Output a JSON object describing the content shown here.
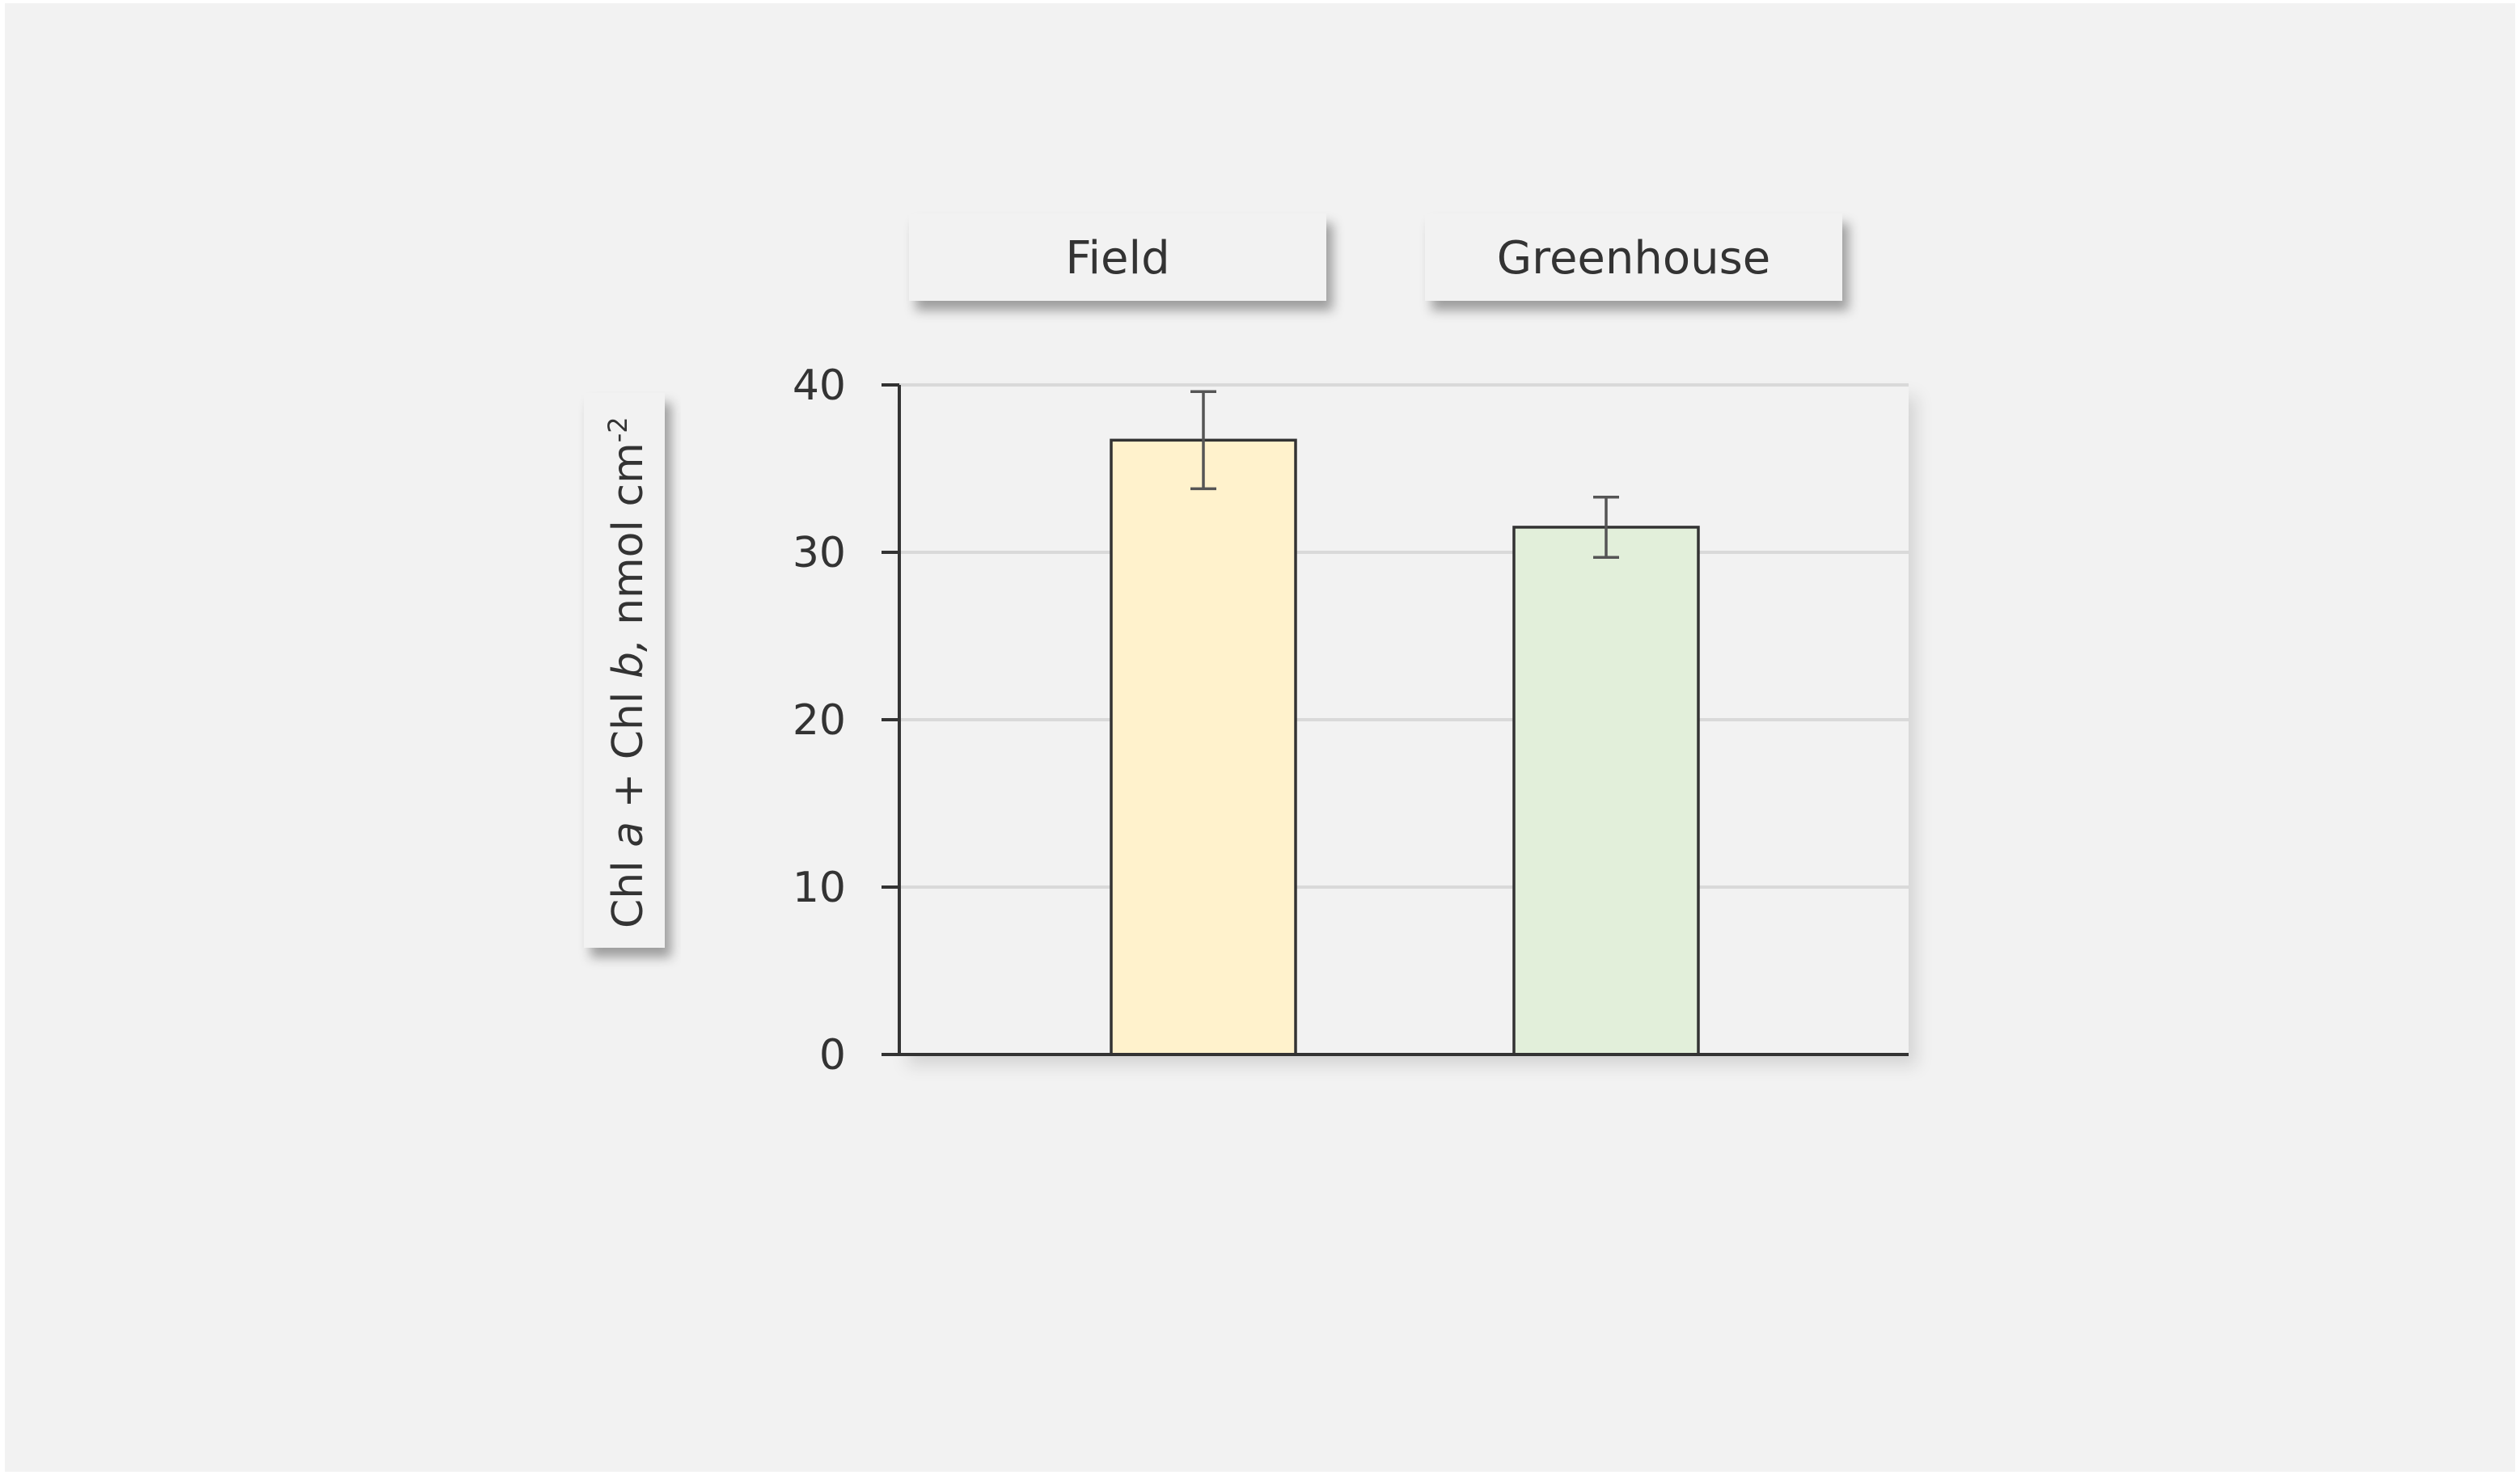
{
  "chart_data": {
    "type": "bar",
    "categories": [
      "Field",
      "Greenhouse"
    ],
    "values": [
      36.7,
      31.5
    ],
    "error": [
      2.9,
      1.8
    ],
    "ylabel": {
      "parts": [
        {
          "text": "Chl ",
          "style": "normal"
        },
        {
          "text": "a",
          "style": "italic"
        },
        {
          "text": " + Chl ",
          "style": "normal"
        },
        {
          "text": "b,",
          "style": "italic"
        },
        {
          "text": " nmol cm",
          "style": "normal"
        },
        {
          "text": "-2",
          "style": "superscript"
        }
      ]
    },
    "ylim": [
      0,
      40
    ],
    "yticks": [
      0,
      10,
      20,
      30,
      40
    ],
    "grid": true,
    "colors": {
      "background": "#f2f2f2",
      "bars": [
        "#fff2cc",
        "#e2efda"
      ],
      "bar_stroke": "#333333",
      "grid": "#d9d9d9",
      "axis": "#333333",
      "error": "#555555",
      "header_fill": "#f2f2f2"
    }
  }
}
